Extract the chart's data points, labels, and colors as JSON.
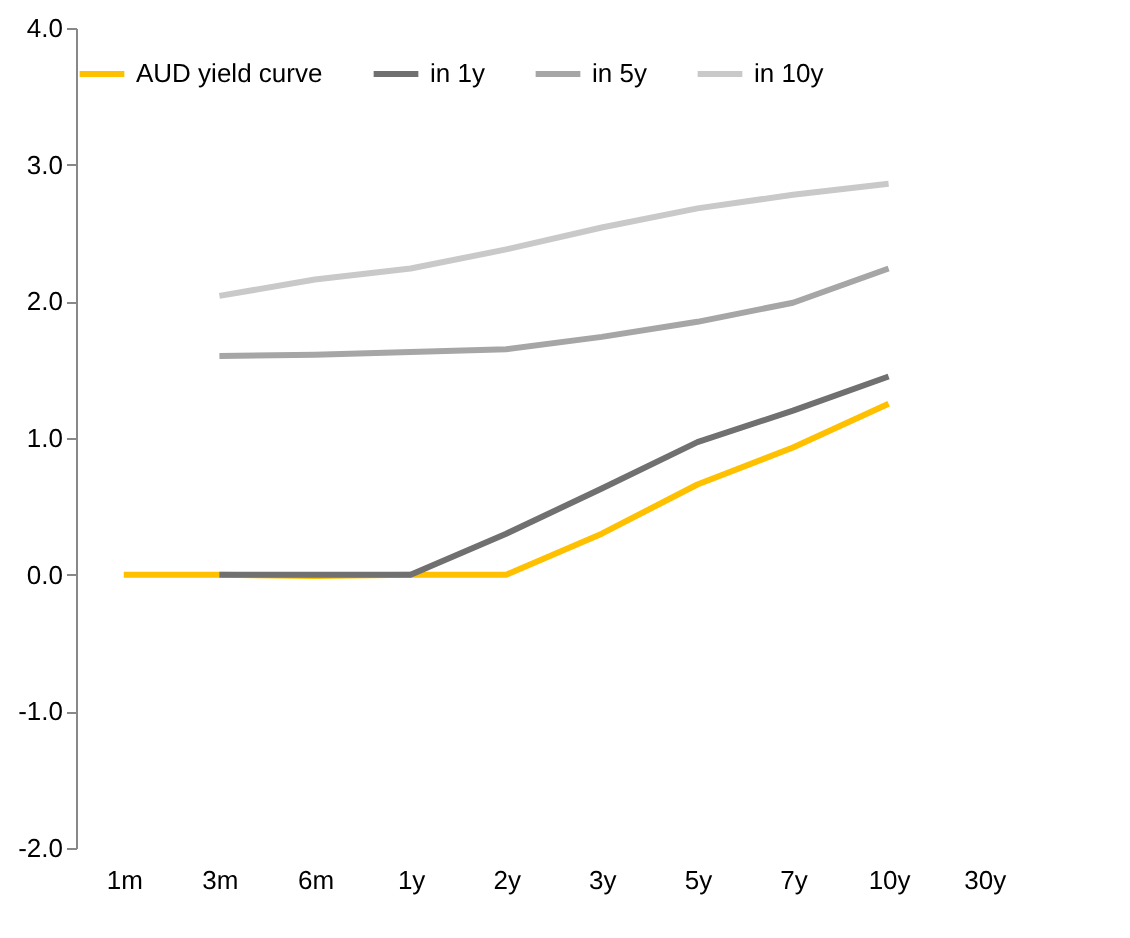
{
  "chart_data": {
    "type": "line",
    "categories": [
      "1m",
      "3m",
      "6m",
      "1y",
      "2y",
      "3y",
      "5y",
      "7y",
      "10y",
      "30y"
    ],
    "series": [
      {
        "name": "AUD yield curve",
        "color": "#ffc000",
        "values": [
          0,
          0,
          -0.01,
          0,
          0,
          0.3,
          0.66,
          0.93,
          1.25,
          null
        ]
      },
      {
        "name": "in 1y",
        "color": "#707070",
        "values": [
          null,
          0,
          0,
          0,
          0.3,
          0.63,
          0.97,
          1.2,
          1.45,
          null
        ]
      },
      {
        "name": "in 5y",
        "color": "#a6a6a6",
        "values": [
          null,
          1.6,
          1.61,
          1.63,
          1.65,
          1.74,
          1.85,
          1.99,
          2.24,
          null
        ]
      },
      {
        "name": "in 10y",
        "color": "#c9c9c9",
        "values": [
          null,
          2.04,
          2.16,
          2.24,
          2.38,
          2.54,
          2.68,
          2.78,
          2.86,
          null
        ]
      }
    ],
    "ylim": [
      -2,
      4
    ],
    "yticks": [
      {
        "value": -2,
        "label": "-2.0"
      },
      {
        "value": -1,
        "label": "-1.0"
      },
      {
        "value": 0,
        "label": "0.0"
      },
      {
        "value": 1,
        "label": "1.0"
      },
      {
        "value": 2,
        "label": "2.0"
      },
      {
        "value": 3,
        "label": "3.0"
      },
      {
        "value": 4,
        "label": "4.0"
      }
    ],
    "grid": false,
    "legend": "top",
    "line_style": "solid",
    "marker": "none"
  }
}
